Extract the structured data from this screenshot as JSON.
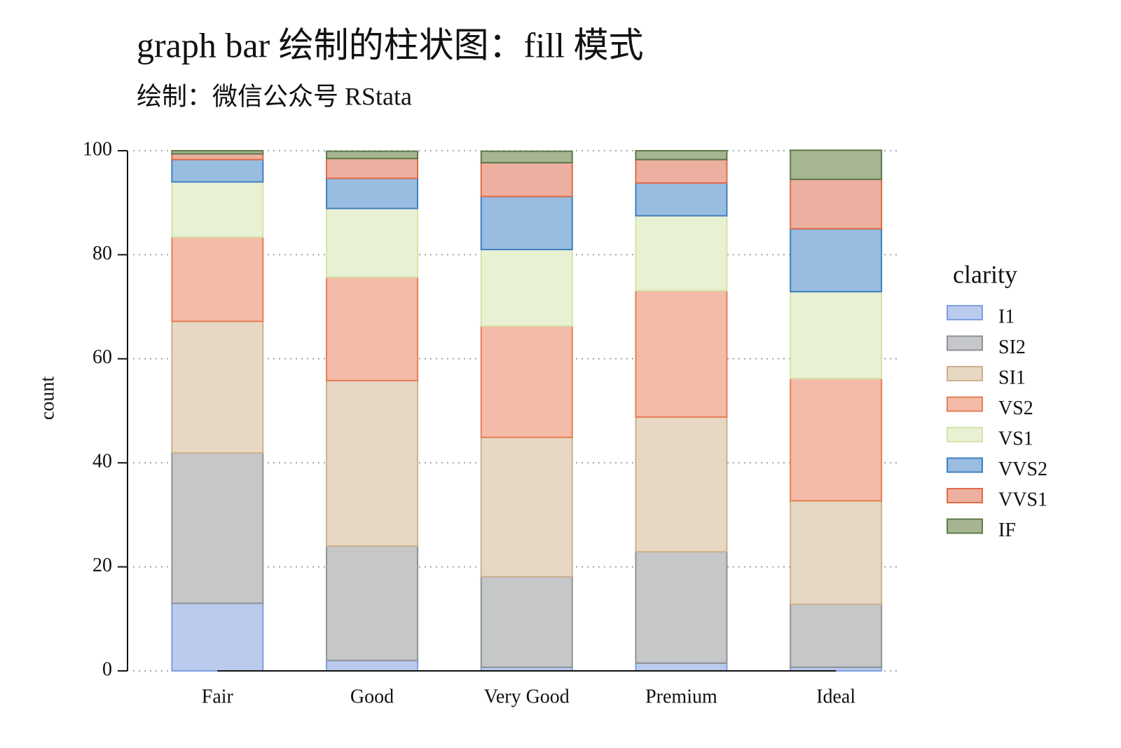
{
  "chart_data": {
    "type": "stacked_bar",
    "title": "graph bar 绘制的柱状图：fill 模式",
    "subtitle": "绘制：微信公众号 RStata",
    "y_label": "count",
    "legend_title": "clarity",
    "categories": [
      "Fair",
      "Good",
      "Very Good",
      "Premium",
      "Ideal"
    ],
    "series": [
      {
        "name": "I1",
        "color": "#bacbee",
        "stroke": "#7f9fe0",
        "values": [
          13.0,
          2.0,
          0.7,
          1.5,
          0.7
        ]
      },
      {
        "name": "SI2",
        "color": "#c6c7c9",
        "stroke": "#8f9296",
        "values": [
          28.9,
          22.0,
          17.4,
          21.4,
          12.1
        ]
      },
      {
        "name": "SI1",
        "color": "#e6d8c2",
        "stroke": "#cdb08c",
        "values": [
          25.3,
          31.8,
          26.8,
          25.9,
          19.9
        ]
      },
      {
        "name": "VS2",
        "color": "#f4bca8",
        "stroke": "#e87e58",
        "values": [
          16.2,
          19.9,
          21.4,
          24.3,
          23.5
        ]
      },
      {
        "name": "VS1",
        "color": "#e9f1d4",
        "stroke": "#d5e3a8",
        "values": [
          10.6,
          13.2,
          14.7,
          14.4,
          16.7
        ]
      },
      {
        "name": "VVS2",
        "color": "#98bde0",
        "stroke": "#3f7fc2",
        "values": [
          4.3,
          5.8,
          10.2,
          6.3,
          12.1
        ]
      },
      {
        "name": "VVS1",
        "color": "#edb0a0",
        "stroke": "#e06a48",
        "values": [
          1.1,
          3.8,
          6.5,
          4.5,
          9.5
        ]
      },
      {
        "name": "IF",
        "color": "#a6b592",
        "stroke": "#5d7a48",
        "values": [
          0.6,
          1.4,
          2.2,
          1.7,
          5.6
        ]
      }
    ],
    "ylim": [
      0,
      100
    ],
    "yticks": [
      0,
      20,
      40,
      60,
      80,
      100
    ],
    "grid": true
  }
}
